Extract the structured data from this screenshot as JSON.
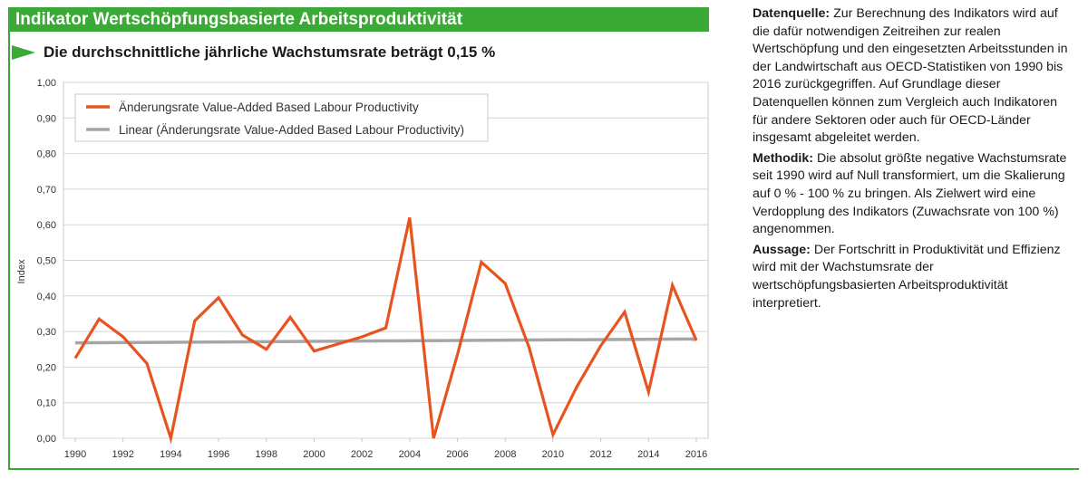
{
  "header": {
    "title": "Indikator Wertschöpfungsbasierte Arbeitsproduktivität",
    "subtitle": "Die durchschnittliche jährliche Wachstumsrate beträgt 0,15 %"
  },
  "colors": {
    "header_green": "#3aa935",
    "series_orange": "#e8541f",
    "trend_gray": "#a6a6a6"
  },
  "chart_data": {
    "type": "line",
    "ylabel": "Index",
    "xlabel": "",
    "ylim": [
      0,
      1
    ],
    "xlim": [
      1990,
      2016
    ],
    "y_ticks": [
      "0,00",
      "0,10",
      "0,20",
      "0,30",
      "0,40",
      "0,50",
      "0,60",
      "0,70",
      "0,80",
      "0,90",
      "1,00"
    ],
    "x_ticks": [
      "1990",
      "1992",
      "1994",
      "1996",
      "1998",
      "2000",
      "2002",
      "2004",
      "2006",
      "2008",
      "2010",
      "2012",
      "2014",
      "2016"
    ],
    "grid": "horizontal",
    "legend_position": "top-left",
    "series": [
      {
        "name": "Änderungsrate Value-Added Based Labour Productivity",
        "x": [
          1990,
          1991,
          1992,
          1993,
          1994,
          1995,
          1996,
          1997,
          1998,
          1999,
          2000,
          2001,
          2002,
          2003,
          2004,
          2005,
          2006,
          2007,
          2008,
          2009,
          2010,
          2011,
          2012,
          2013,
          2014,
          2015,
          2016
        ],
        "values": [
          0.225,
          0.335,
          0.285,
          0.21,
          0.0,
          0.33,
          0.395,
          0.29,
          0.25,
          0.34,
          0.245,
          0.265,
          0.285,
          0.31,
          0.62,
          0.0,
          0.235,
          0.495,
          0.435,
          0.255,
          0.01,
          0.145,
          0.26,
          0.355,
          0.13,
          0.43,
          0.275
        ]
      },
      {
        "name": "Linear (Änderungsrate Value-Added Based Labour Productivity)",
        "x": [
          1990,
          2016
        ],
        "values": [
          0.268,
          0.279
        ]
      }
    ]
  },
  "sidebar": {
    "paragraphs": [
      {
        "label": "Datenquelle:",
        "text": "Zur Berechnung des Indikators wird auf die dafür notwendigen Zeitreihen zur realen Wertschöpfung und den eingesetzten Arbeitsstunden in der Landwirtschaft aus OECD-Statistiken von 1990 bis 2016 zurückgegriffen. Auf Grundlage dieser Datenquellen können zum Vergleich auch Indikatoren für andere Sektoren oder auch für OECD-Länder insgesamt abgeleitet werden."
      },
      {
        "label": "Methodik:",
        "text": "Die absolut größte negative Wachstumsrate seit 1990 wird auf Null transformiert, um die Skalierung auf 0 % - 100 % zu bringen. Als Zielwert wird eine Verdopplung des Indikators (Zuwachsrate von 100 %) angenommen."
      },
      {
        "label": "Aussage:",
        "text": "Der Fortschritt in Produktivität und Effizienz wird mit der Wachstumsrate der wertschöpfungsbasierten Arbeitsproduktivität interpretiert."
      }
    ]
  }
}
